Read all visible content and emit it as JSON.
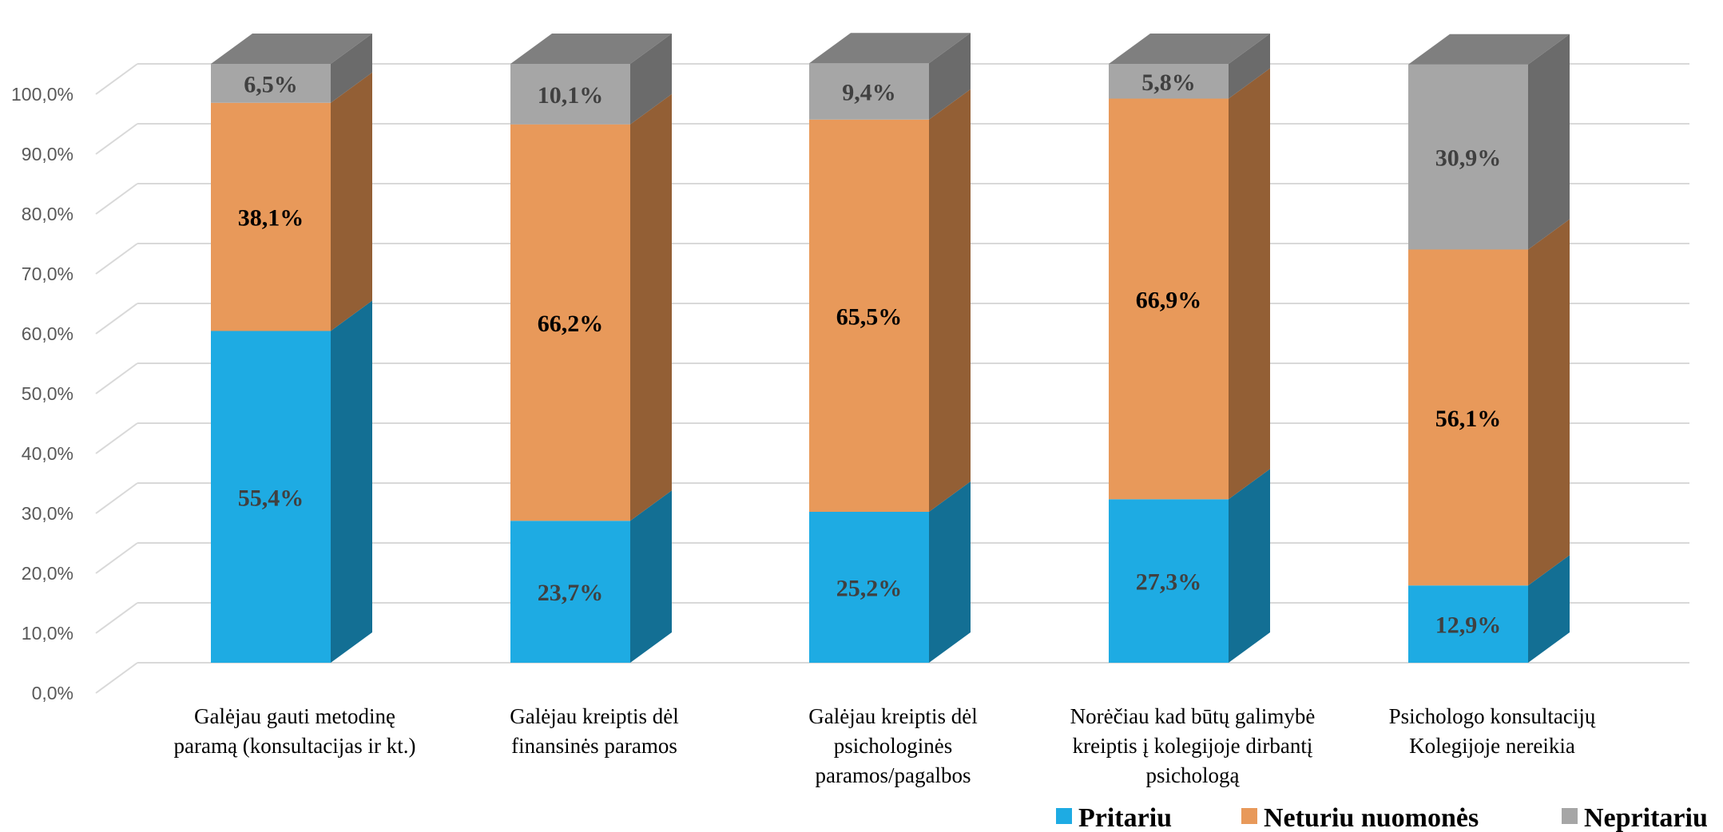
{
  "chart_data": {
    "type": "bar",
    "stacked": true,
    "three_d": true,
    "categories": [
      [
        "Galėjau gauti metodinę",
        "paramą (konsultacijas ir kt.)"
      ],
      [
        "Galėjau kreiptis dėl",
        "finansinės  paramos"
      ],
      [
        "Galėjau kreiptis dėl",
        "psichologinės",
        "paramos/pagalbos"
      ],
      [
        "Norėčiau  kad būtų galimybė",
        "kreiptis į kolegijoje dirbantį",
        "psichologą"
      ],
      [
        "Psichologo konsultacijų",
        "Kolegijoje nereikia"
      ]
    ],
    "series": [
      {
        "name": "Pritariu",
        "values": [
          55.4,
          23.7,
          25.2,
          27.3,
          12.9
        ],
        "labels": [
          "55,4%",
          "23,7%",
          "25,2%",
          "27,3%",
          "12,9%"
        ],
        "color": "#1eabe3",
        "side_color": "#136f94",
        "label_style": "dark"
      },
      {
        "name": "Neturiu nuomonės",
        "values": [
          38.1,
          66.2,
          65.5,
          66.9,
          56.1
        ],
        "labels": [
          "38,1%",
          "66,2%",
          "65,5%",
          "66,9%",
          "56,1%"
        ],
        "color": "#e8995a",
        "side_color": "#935f35",
        "label_style": "black"
      },
      {
        "name": "Nepritariu",
        "values": [
          6.5,
          10.1,
          9.4,
          5.8,
          30.9
        ],
        "labels": [
          "6,5%",
          "10,1%",
          "9,4%",
          "5,8%",
          "30,9%"
        ],
        "color": "#a6a6a6",
        "side_color": "#6b6b6b",
        "top_color": "#7f7f7f",
        "label_style": "dark"
      }
    ],
    "y_ticks": [
      "0,0%",
      "10,0%",
      "20,0%",
      "30,0%",
      "40,0%",
      "50,0%",
      "60,0%",
      "70,0%",
      "80,0%",
      "90,0%",
      "100,0%"
    ],
    "ylim": [
      0,
      100
    ],
    "grid": true,
    "legend_position": "bottom-right",
    "title": "",
    "xlabel": "",
    "ylabel": ""
  }
}
